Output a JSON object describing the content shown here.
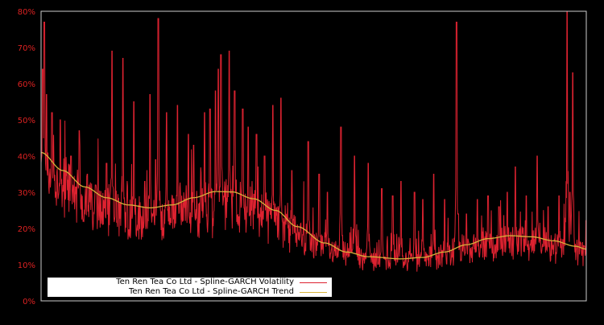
{
  "chart_data": {
    "type": "line",
    "title": "",
    "xlabel": "",
    "ylabel": "",
    "ylim": [
      0,
      80
    ],
    "y_ticks": [
      "0%",
      "10%",
      "20%",
      "30%",
      "40%",
      "50%",
      "60%",
      "70%",
      "80%"
    ],
    "y_tick_values": [
      0,
      10,
      20,
      30,
      40,
      50,
      60,
      70,
      80
    ],
    "grid": false,
    "legend_position": "lower-left",
    "x_tick_labels": [],
    "colors": {
      "background": "#000000",
      "axis": "#cccccc",
      "tick_label": "#dd2222",
      "volatility": "#dd2230",
      "trend": "#d8b23a"
    },
    "series": [
      {
        "name": "Ten Ren Tea Co Ltd - Spline-GARCH Volatility",
        "color": "#dd2230",
        "note": "daily volatility; approximate readings at evenly spaced positions (fraction of x range)",
        "baseline_points": [
          [
            0.0,
            26
          ],
          [
            0.05,
            21
          ],
          [
            0.12,
            17
          ],
          [
            0.2,
            15
          ],
          [
            0.28,
            16
          ],
          [
            0.34,
            17
          ],
          [
            0.4,
            16
          ],
          [
            0.46,
            13
          ],
          [
            0.52,
            10
          ],
          [
            0.6,
            8
          ],
          [
            0.68,
            7.5
          ],
          [
            0.75,
            8
          ],
          [
            0.82,
            9
          ],
          [
            0.86,
            11
          ],
          [
            0.9,
            10
          ],
          [
            0.95,
            10
          ],
          [
            1.0,
            8
          ]
        ],
        "spikes": [
          [
            0.003,
            64
          ],
          [
            0.006,
            77
          ],
          [
            0.01,
            57
          ],
          [
            0.02,
            52
          ],
          [
            0.035,
            50
          ],
          [
            0.055,
            40
          ],
          [
            0.07,
            47
          ],
          [
            0.085,
            35
          ],
          [
            0.1,
            32
          ],
          [
            0.12,
            38
          ],
          [
            0.13,
            69
          ],
          [
            0.15,
            67
          ],
          [
            0.17,
            55
          ],
          [
            0.19,
            33
          ],
          [
            0.2,
            57
          ],
          [
            0.21,
            39
          ],
          [
            0.215,
            78
          ],
          [
            0.23,
            52
          ],
          [
            0.25,
            54
          ],
          [
            0.27,
            46
          ],
          [
            0.28,
            43
          ],
          [
            0.3,
            52
          ],
          [
            0.31,
            53
          ],
          [
            0.32,
            58
          ],
          [
            0.325,
            64
          ],
          [
            0.33,
            68
          ],
          [
            0.345,
            69
          ],
          [
            0.355,
            58
          ],
          [
            0.37,
            53
          ],
          [
            0.38,
            48
          ],
          [
            0.395,
            46
          ],
          [
            0.41,
            40
          ],
          [
            0.425,
            54
          ],
          [
            0.44,
            56
          ],
          [
            0.46,
            36
          ],
          [
            0.49,
            44
          ],
          [
            0.51,
            35
          ],
          [
            0.525,
            30
          ],
          [
            0.55,
            48
          ],
          [
            0.575,
            40
          ],
          [
            0.6,
            38
          ],
          [
            0.625,
            31
          ],
          [
            0.645,
            29
          ],
          [
            0.66,
            33
          ],
          [
            0.685,
            30
          ],
          [
            0.7,
            28
          ],
          [
            0.72,
            35
          ],
          [
            0.74,
            28
          ],
          [
            0.765,
            24
          ],
          [
            0.762,
            77
          ],
          [
            0.78,
            24
          ],
          [
            0.8,
            28
          ],
          [
            0.82,
            29
          ],
          [
            0.84,
            26
          ],
          [
            0.855,
            30
          ],
          [
            0.87,
            37
          ],
          [
            0.89,
            29
          ],
          [
            0.91,
            40
          ],
          [
            0.93,
            26
          ],
          [
            0.95,
            29
          ],
          [
            0.97,
            30
          ],
          [
            0.965,
            80
          ],
          [
            0.975,
            63
          ],
          [
            0.99,
            16
          ]
        ]
      },
      {
        "name": "Ten Ren Tea Co Ltd - Spline-GARCH Trend",
        "color": "#d8b23a",
        "note": "smooth spline trend; [fraction of x range, percent]",
        "points": [
          [
            0.0,
            41
          ],
          [
            0.04,
            36
          ],
          [
            0.08,
            31.5
          ],
          [
            0.12,
            28.5
          ],
          [
            0.16,
            26.5
          ],
          [
            0.2,
            25.7
          ],
          [
            0.24,
            26.5
          ],
          [
            0.28,
            28.5
          ],
          [
            0.32,
            30.2
          ],
          [
            0.35,
            30.1
          ],
          [
            0.39,
            28.2
          ],
          [
            0.43,
            25
          ],
          [
            0.47,
            20.5
          ],
          [
            0.52,
            16
          ],
          [
            0.56,
            13.5
          ],
          [
            0.6,
            12.2
          ],
          [
            0.66,
            11.6
          ],
          [
            0.7,
            12
          ],
          [
            0.74,
            13.5
          ],
          [
            0.78,
            15.5
          ],
          [
            0.82,
            17.2
          ],
          [
            0.86,
            18
          ],
          [
            0.9,
            17.7
          ],
          [
            0.94,
            16.6
          ],
          [
            0.98,
            15.1
          ],
          [
            1.0,
            14.3
          ]
        ]
      }
    ]
  },
  "legend": {
    "items": [
      {
        "label": "Ten Ren Tea Co Ltd - Spline-GARCH Volatility",
        "color": "#dd2230"
      },
      {
        "label": "Ten Ren Tea Co Ltd - Spline-GARCH Trend",
        "color": "#d8b23a"
      }
    ]
  }
}
